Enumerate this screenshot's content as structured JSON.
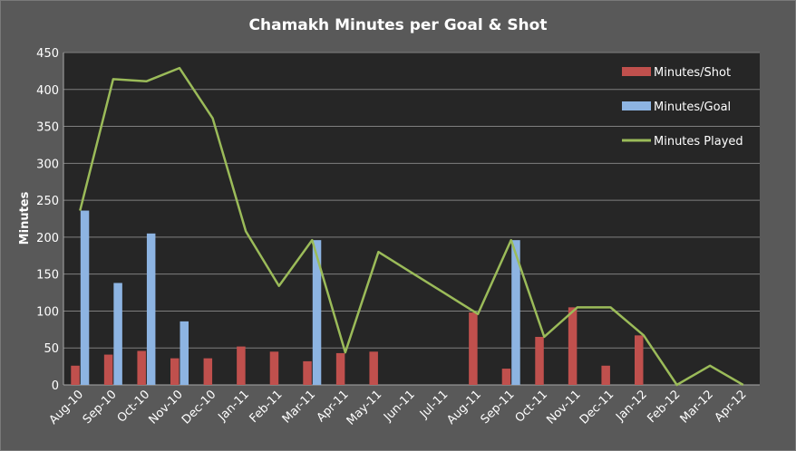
{
  "chart_data": {
    "type": "bar",
    "title": "Chamakh Minutes per Goal & Shot",
    "xlabel": "",
    "ylabel": "Minutes",
    "ylim": [
      0,
      450
    ],
    "yticks": [
      0,
      50,
      100,
      150,
      200,
      250,
      300,
      350,
      400,
      450
    ],
    "grid": true,
    "legend_position": "top-right",
    "categories": [
      "Aug-10",
      "Sep-10",
      "Oct-10",
      "Nov-10",
      "Dec-10",
      "Jan-11",
      "Feb-11",
      "Mar-11",
      "Apr-11",
      "May-11",
      "Jun-11",
      "Jul-11",
      "Aug-11",
      "Sep-11",
      "Oct-11",
      "Nov-11",
      "Dec-11",
      "Jan-12",
      "Feb-12",
      "Mar-12",
      "Apr-12"
    ],
    "series": [
      {
        "name": "Minutes/Shot",
        "type": "bar",
        "color": "#c0504d",
        "values": [
          26,
          41,
          46,
          36,
          36,
          52,
          45,
          32,
          43,
          45,
          null,
          null,
          98,
          22,
          65,
          105,
          26,
          67,
          null,
          null,
          null
        ]
      },
      {
        "name": "Minutes/Goal",
        "type": "bar",
        "color": "#8db4e2",
        "values": [
          236,
          138,
          205,
          86,
          null,
          null,
          null,
          196,
          null,
          null,
          null,
          null,
          null,
          196,
          null,
          null,
          null,
          null,
          null,
          null,
          null
        ]
      },
      {
        "name": "Minutes Played",
        "type": "line",
        "color": "#9bbb59",
        "values": [
          236,
          414,
          411,
          429,
          361,
          208,
          134,
          196,
          44,
          180,
          152,
          124,
          96,
          196,
          65,
          105,
          105,
          67,
          0,
          26,
          0
        ]
      }
    ]
  }
}
